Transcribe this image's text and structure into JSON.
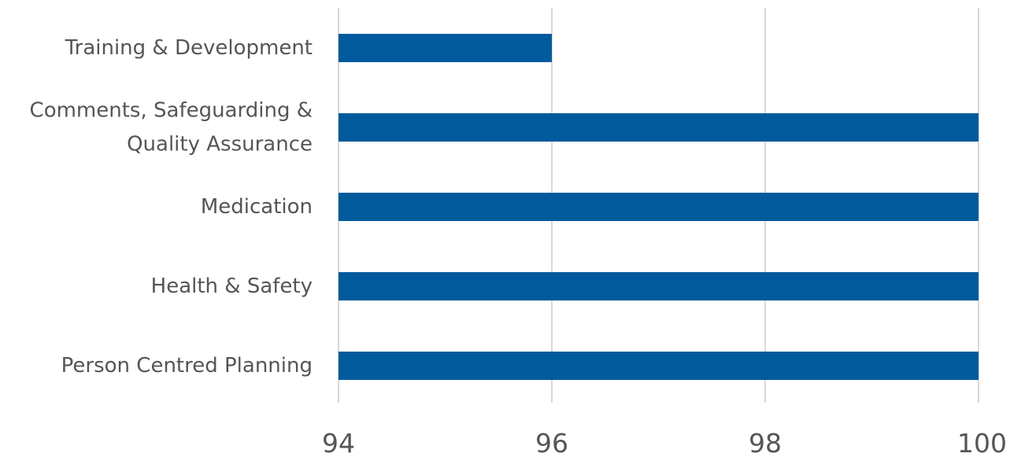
{
  "chart_data": {
    "type": "bar",
    "orientation": "horizontal",
    "title": "",
    "xlabel": "",
    "ylabel": "",
    "categories": [
      "Training & Development",
      "Comments, Safeguarding & Quality Assurance",
      "Medication",
      "Health & Safety",
      "Person Centred Planning"
    ],
    "category_label_lines": [
      [
        "Training & Development"
      ],
      [
        "Comments, Safeguarding &",
        "Quality Assurance"
      ],
      [
        "Medication"
      ],
      [
        "Health & Safety"
      ],
      [
        "Person Centred Planning"
      ]
    ],
    "values": [
      96,
      100,
      100,
      100,
      100
    ],
    "xlim": [
      94,
      100
    ],
    "xticks": [
      94,
      96,
      98,
      100
    ],
    "xtick_labels": [
      "94",
      "96",
      "98",
      "100"
    ],
    "grid": true,
    "legend": "none",
    "bar_color": "#005A9C",
    "grid_color": "#D9D9D9",
    "label_color": "#555555"
  }
}
